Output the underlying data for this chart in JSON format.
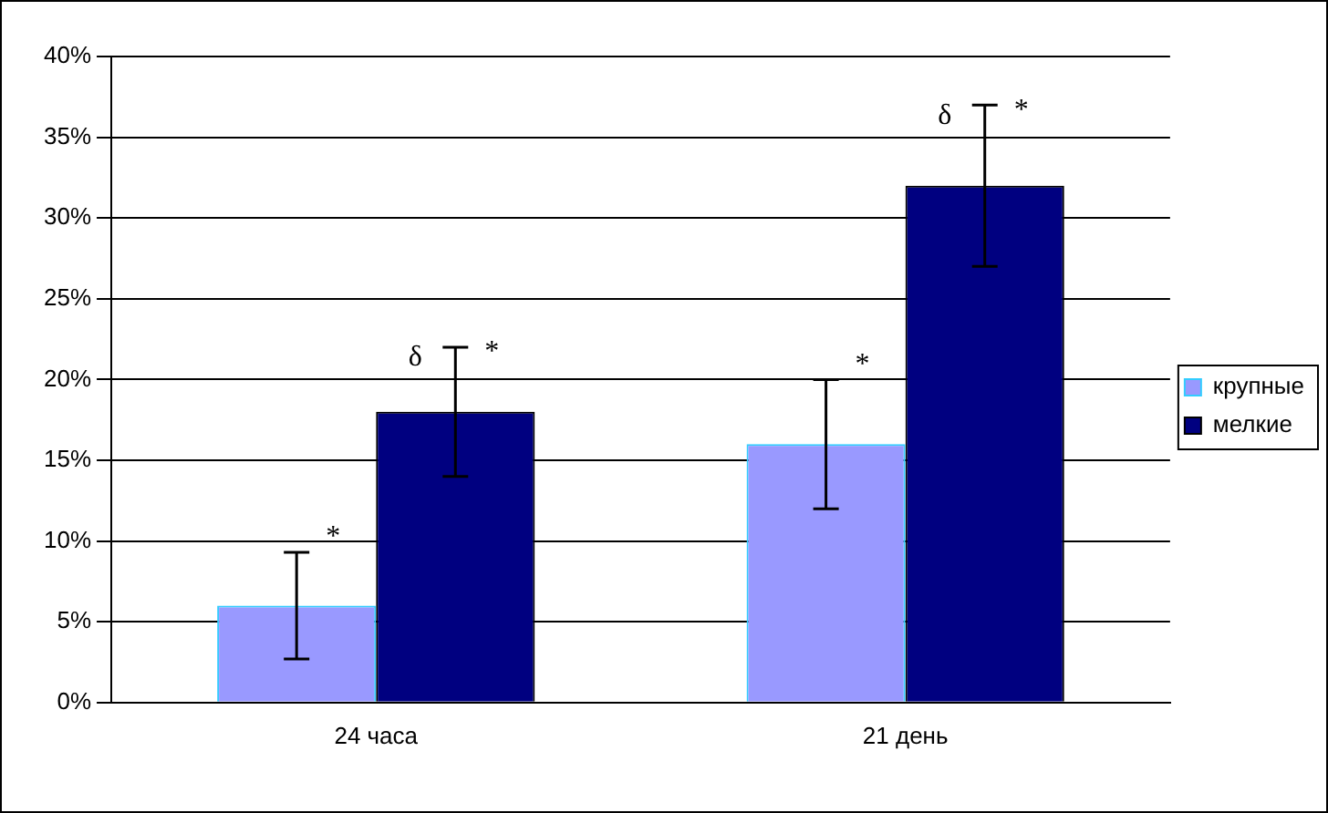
{
  "chart_data": {
    "type": "bar",
    "categories": [
      "24 часа",
      "21 день"
    ],
    "series": [
      {
        "name": "крупные",
        "color": "#9999ff",
        "values": [
          6,
          16
        ],
        "errors": [
          [
            2.7,
            9.3
          ],
          [
            12,
            20
          ]
        ]
      },
      {
        "name": "мелкие",
        "color": "#000080",
        "values": [
          18,
          32
        ],
        "errors": [
          [
            14,
            22
          ],
          [
            27,
            37
          ]
        ]
      }
    ],
    "ylim": [
      0,
      40
    ],
    "yticks": [
      {
        "value": 0,
        "label": "0%"
      },
      {
        "value": 5,
        "label": "5%"
      },
      {
        "value": 10,
        "label": "10%"
      },
      {
        "value": 15,
        "label": "15%"
      },
      {
        "value": 20,
        "label": "20%"
      },
      {
        "value": 25,
        "label": "25%"
      },
      {
        "value": 30,
        "label": "30%"
      },
      {
        "value": 35,
        "label": "35%"
      },
      {
        "value": 40,
        "label": "40%"
      }
    ],
    "grid": "y",
    "legend": "right",
    "annotations": [
      {
        "text": "*",
        "x": "24 часа",
        "y": 9.3
      },
      "δ",
      "*",
      {
        "text": "*",
        "x": "21 день",
        "y": 20
      },
      "δ",
      "*"
    ]
  }
}
